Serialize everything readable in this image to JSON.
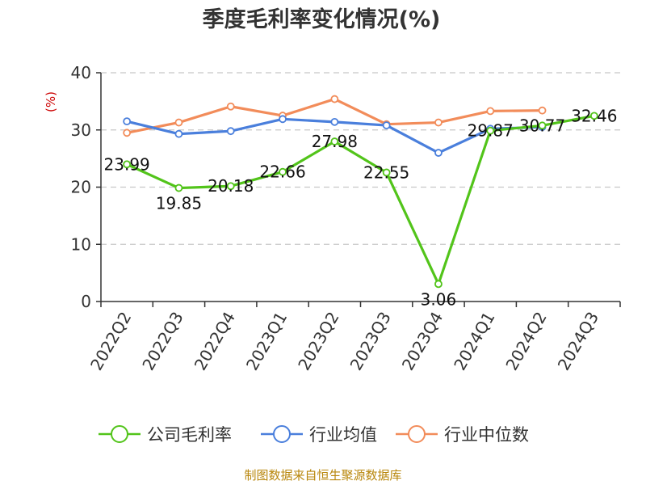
{
  "chart_data": {
    "type": "line",
    "title": "季度毛利率变化情况(%)",
    "ylabel": "(%)",
    "xlabel": "",
    "ylim": [
      0,
      40
    ],
    "yticks": [
      0,
      10,
      20,
      30,
      40
    ],
    "grid": true,
    "legend_position": "bottom",
    "categories": [
      "2022Q2",
      "2022Q3",
      "2022Q4",
      "2023Q1",
      "2023Q2",
      "2023Q3",
      "2023Q4",
      "2024Q1",
      "2024Q2",
      "2024Q3"
    ],
    "series": [
      {
        "name": "公司毛利率",
        "color": "#52c41a",
        "show_labels": true,
        "values": [
          23.99,
          19.85,
          20.18,
          22.66,
          27.98,
          22.55,
          3.06,
          29.87,
          30.77,
          32.46
        ]
      },
      {
        "name": "行业均值",
        "color": "#4a7fdc",
        "show_labels": false,
        "values": [
          31.5,
          29.3,
          29.8,
          31.9,
          31.4,
          30.8,
          26.0,
          30.2,
          30.5,
          null
        ]
      },
      {
        "name": "行业中位数",
        "color": "#f28c5a",
        "show_labels": false,
        "values": [
          29.5,
          31.3,
          34.1,
          32.5,
          35.4,
          31.0,
          31.3,
          33.3,
          33.4,
          null
        ]
      }
    ]
  },
  "source": "制图数据来自恒生聚源数据库"
}
